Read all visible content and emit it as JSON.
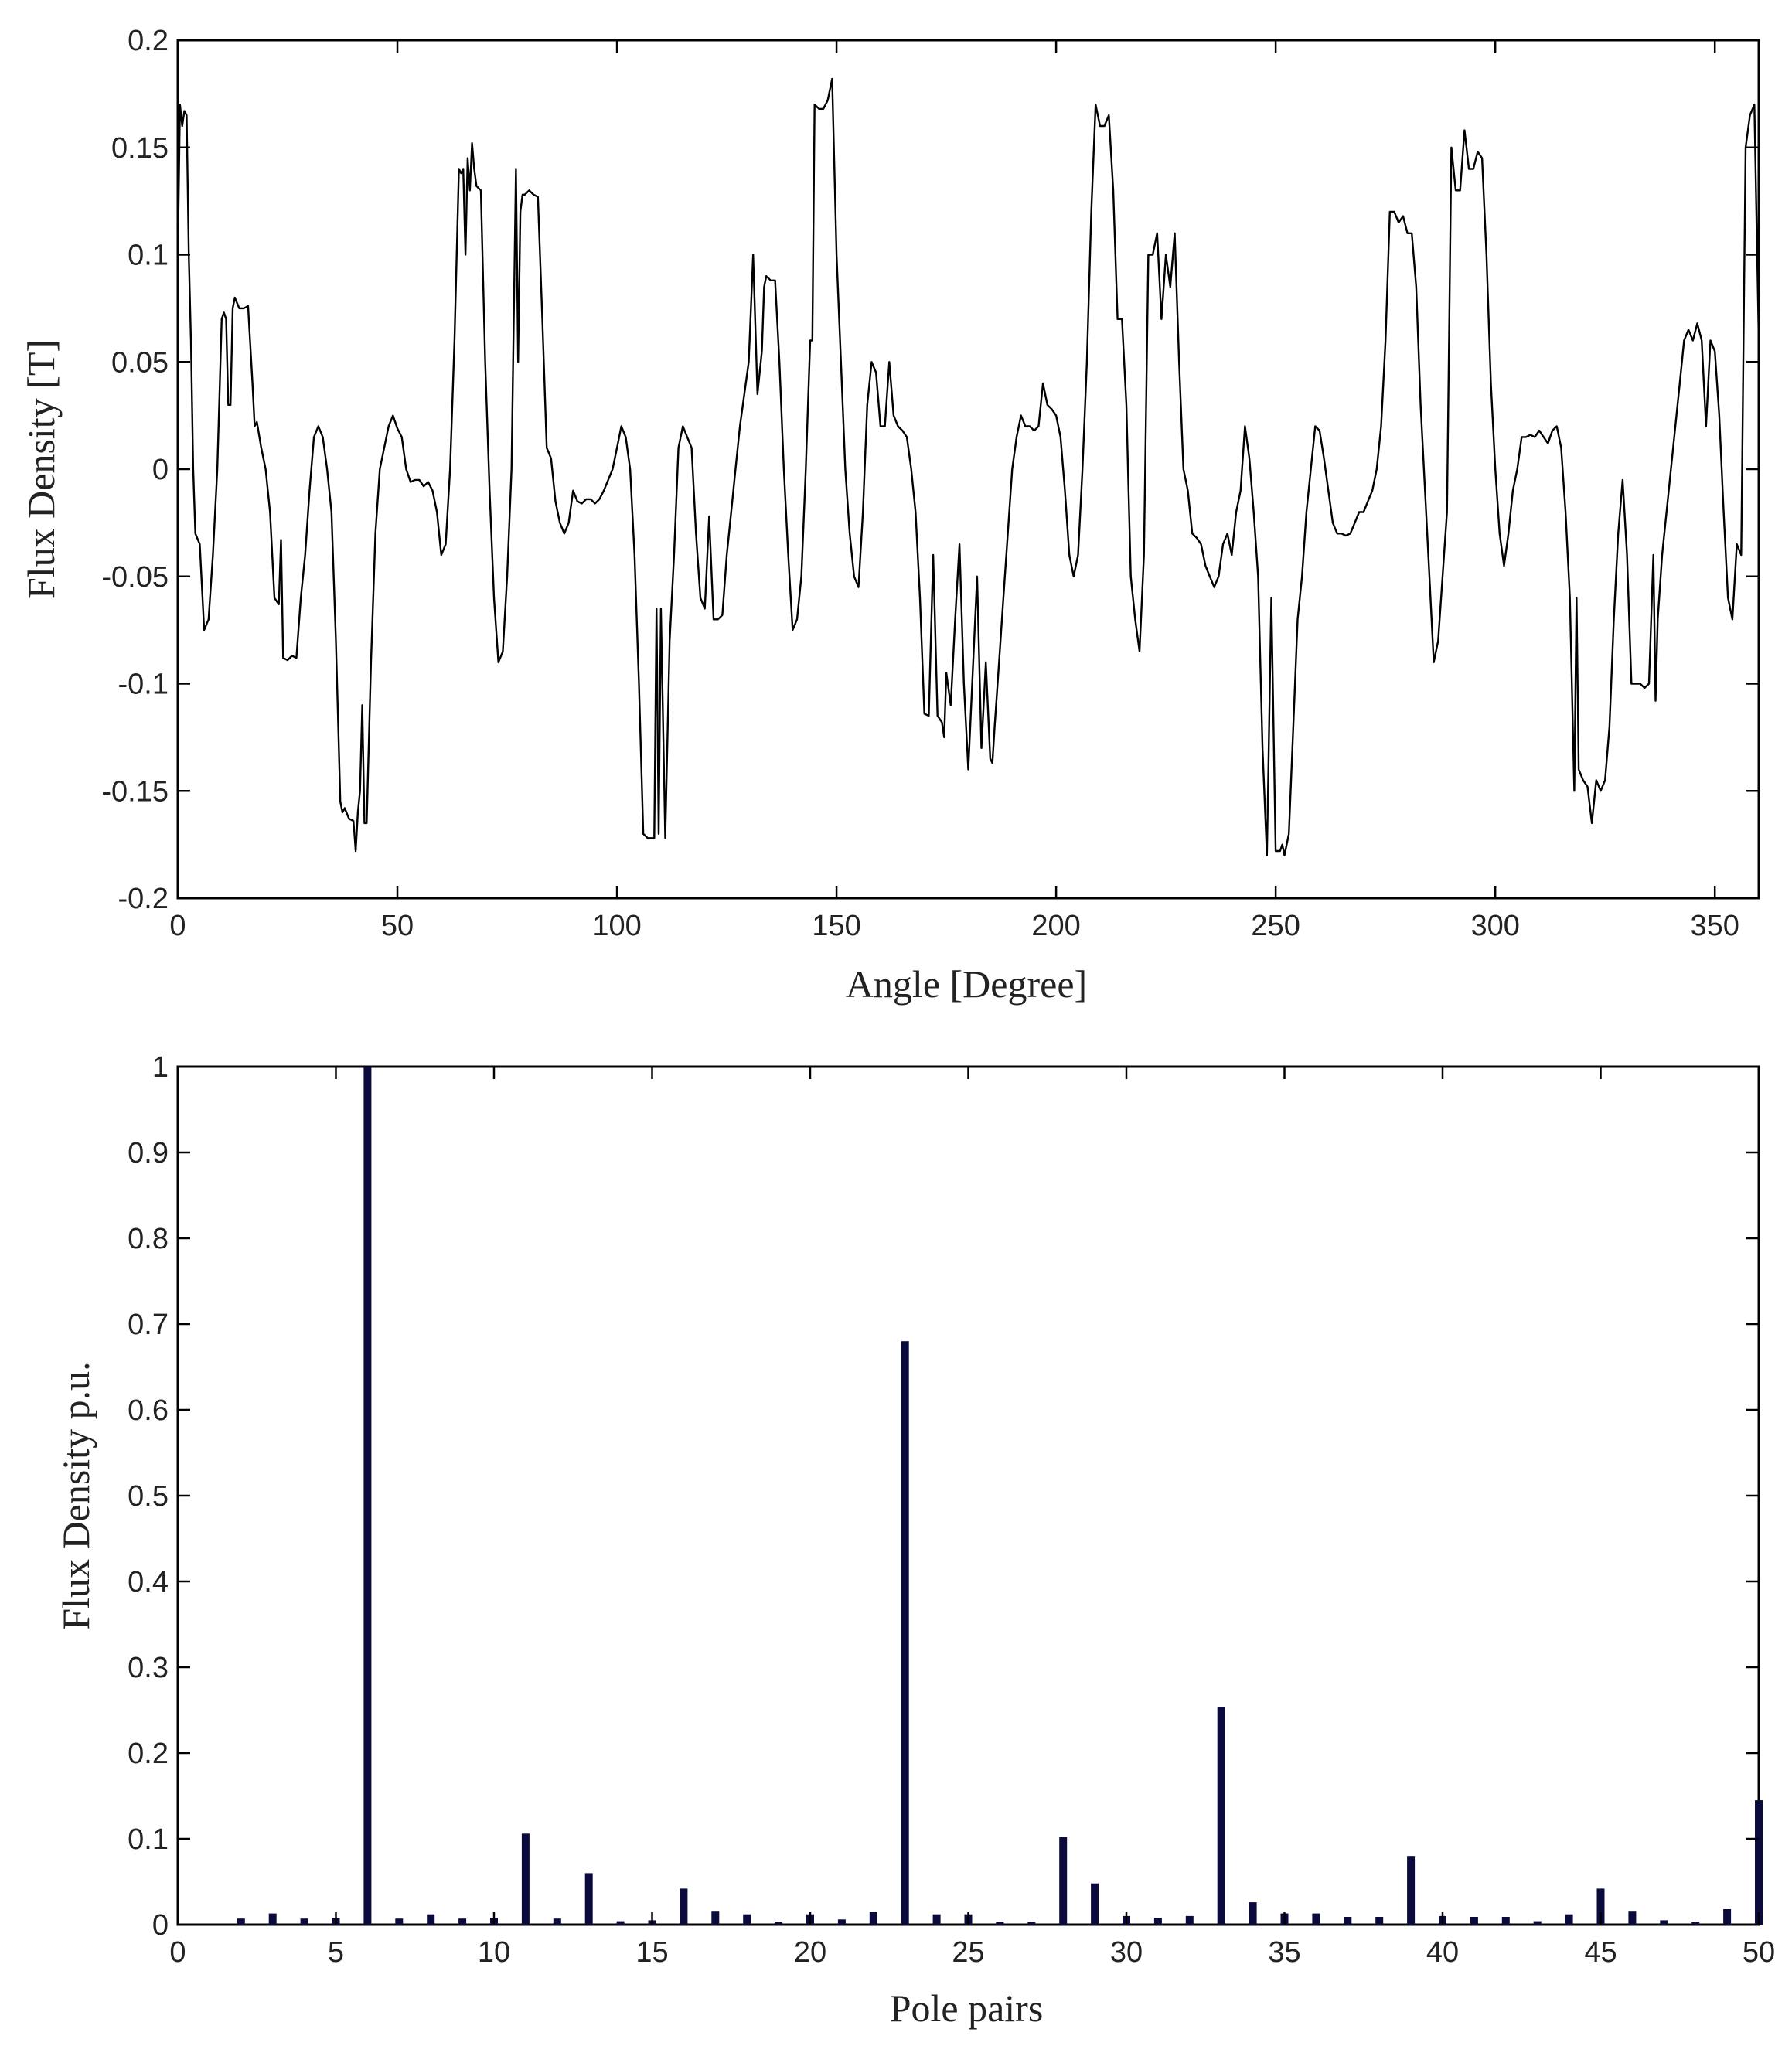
{
  "chart_data": [
    {
      "type": "line",
      "xlabel": "Angle [Degree]",
      "ylabel": "Flux Density [T]",
      "xlim": [
        0,
        360
      ],
      "ylim": [
        -0.2,
        0.2
      ],
      "xticks": [
        0,
        50,
        100,
        150,
        200,
        250,
        300,
        350
      ],
      "xtick_labels": [
        "0",
        "50",
        "100",
        "150",
        "200",
        "250",
        "300",
        "350"
      ],
      "yticks": [
        0.2,
        0.15,
        0.1,
        0.05,
        0,
        -0.05,
        -0.1,
        -0.15,
        -0.2
      ],
      "ytick_labels": [
        "0.2",
        "0.15",
        "0.1",
        "0.05",
        "0",
        "-0.05",
        "-0.1",
        "-0.15",
        "-0.2"
      ],
      "grid": false,
      "line_color": "#000000",
      "series": [
        {
          "x": [
            0,
            0.5,
            1,
            1.5,
            2,
            2.5,
            3,
            3.5,
            4,
            5,
            6,
            7,
            8,
            9,
            10,
            10.5,
            11,
            11.5,
            12,
            12.5,
            13,
            14,
            15,
            16,
            17,
            17.5,
            18,
            19,
            20,
            21,
            22,
            23,
            23.5,
            24,
            25,
            26,
            27,
            28,
            29,
            30,
            31,
            32,
            33,
            34,
            35,
            36,
            37,
            37.5,
            38,
            39,
            40,
            40.5,
            41,
            41.5,
            42,
            42.5,
            43,
            44,
            45,
            46,
            47,
            48,
            49,
            50,
            51,
            52,
            53,
            54,
            55,
            56,
            57,
            58,
            59,
            60,
            61,
            62,
            63,
            64,
            64.5,
            65,
            65.5,
            66,
            66.5,
            67,
            67.5,
            68,
            69,
            70,
            71,
            72,
            73,
            74,
            75,
            76,
            77,
            77.5,
            78,
            78.5,
            79,
            80,
            81,
            82,
            83,
            84,
            85,
            86,
            87,
            88,
            89,
            90,
            91,
            92,
            93,
            94,
            95,
            96,
            97,
            98,
            99,
            100,
            101,
            102,
            103,
            104,
            105,
            106,
            107,
            108,
            108.5,
            109,
            109.5,
            110,
            111,
            112,
            113,
            114,
            115,
            116,
            117,
            118,
            119,
            120,
            121,
            122,
            123,
            124,
            125,
            126,
            127,
            128,
            129,
            130,
            131,
            132,
            133,
            133.5,
            134,
            135,
            136,
            137,
            138,
            139,
            140,
            141,
            142,
            143,
            144,
            144.5,
            145,
            146,
            147,
            148,
            149,
            150,
            151,
            152,
            153,
            154,
            155,
            156,
            157,
            158,
            159,
            160,
            161,
            162,
            163,
            164,
            165,
            166,
            167,
            168,
            169,
            170,
            171,
            172,
            173,
            174,
            174.5,
            175,
            176,
            177,
            178,
            179,
            180,
            181,
            182,
            183,
            184,
            185,
            185.5,
            186,
            187,
            188,
            189,
            190,
            191,
            192,
            193,
            194,
            195,
            196,
            197,
            198,
            199,
            200,
            201,
            202,
            203,
            204,
            205,
            206,
            207,
            208,
            209,
            210,
            211,
            212,
            213,
            214,
            215,
            216,
            216.5,
            217,
            218,
            219,
            220,
            221,
            222,
            223,
            224,
            225,
            226,
            227,
            228,
            229,
            230,
            231,
            232,
            233,
            234,
            235,
            236,
            237,
            238,
            239,
            240,
            241,
            242,
            243,
            244,
            245,
            246,
            247,
            248,
            249,
            250,
            251,
            251.5,
            252,
            253,
            254,
            255,
            256,
            257,
            258,
            259,
            260,
            261,
            262,
            263,
            264,
            265,
            266,
            267,
            268,
            269,
            270,
            271,
            272,
            273,
            274,
            275,
            276,
            277,
            278,
            279,
            280,
            281,
            282,
            283,
            284,
            285,
            286,
            287,
            288,
            289,
            290,
            291,
            292,
            293,
            294,
            295,
            296,
            297,
            298,
            299,
            300,
            301,
            302,
            303,
            304,
            305,
            306,
            307,
            308,
            309,
            310,
            311,
            312,
            313,
            314,
            315,
            316,
            317,
            318,
            318.5,
            319,
            320,
            321,
            322,
            323,
            324,
            325,
            326,
            327,
            328,
            329,
            330,
            331,
            332,
            333,
            334,
            335,
            336,
            336.5,
            337,
            338,
            339,
            340,
            341,
            342,
            343,
            344,
            345,
            346,
            347,
            348,
            349,
            350,
            351,
            352,
            353,
            354,
            355,
            356,
            357,
            358,
            359,
            360
          ],
          "y": [
            0.1,
            0.17,
            0.16,
            0.167,
            0.165,
            0.1,
            0.06,
            0.0,
            -0.03,
            -0.035,
            -0.075,
            -0.07,
            -0.04,
            0.0,
            0.07,
            0.073,
            0.07,
            0.03,
            0.03,
            0.075,
            0.08,
            0.075,
            0.075,
            0.076,
            0.04,
            0.02,
            0.022,
            0.01,
            0.0,
            -0.02,
            -0.06,
            -0.063,
            -0.033,
            -0.088,
            -0.089,
            -0.087,
            -0.088,
            -0.06,
            -0.04,
            -0.01,
            0.015,
            0.02,
            0.015,
            0.0,
            -0.02,
            -0.08,
            -0.155,
            -0.16,
            -0.158,
            -0.163,
            -0.164,
            -0.178,
            -0.16,
            -0.15,
            -0.11,
            -0.165,
            -0.165,
            -0.09,
            -0.03,
            0.0,
            0.01,
            0.02,
            0.025,
            0.019,
            0.015,
            -0.0,
            -0.006,
            -0.005,
            -0.005,
            -0.008,
            -0.006,
            -0.01,
            -0.02,
            -0.04,
            -0.035,
            0.0,
            0.06,
            0.14,
            0.138,
            0.14,
            0.1,
            0.145,
            0.13,
            0.152,
            0.14,
            0.132,
            0.13,
            0.05,
            -0.01,
            -0.06,
            -0.09,
            -0.085,
            -0.05,
            0.0,
            0.14,
            0.05,
            0.12,
            0.128,
            0.128,
            0.13,
            0.128,
            0.127,
            0.07,
            0.01,
            0.005,
            -0.015,
            -0.025,
            -0.03,
            -0.025,
            -0.01,
            -0.015,
            -0.016,
            -0.014,
            -0.014,
            -0.016,
            -0.014,
            -0.01,
            -0.005,
            0.0,
            0.01,
            0.02,
            0.015,
            0.0,
            -0.04,
            -0.1,
            -0.17,
            -0.172,
            -0.172,
            -0.172,
            -0.065,
            -0.17,
            -0.065,
            -0.172,
            -0.08,
            -0.04,
            0.01,
            0.02,
            0.015,
            0.01,
            -0.03,
            -0.06,
            -0.065,
            -0.022,
            -0.07,
            -0.07,
            -0.068,
            -0.04,
            -0.02,
            0.0,
            0.02,
            0.035,
            0.05,
            0.1,
            0.035,
            0.055,
            0.085,
            0.09,
            0.088,
            0.088,
            0.05,
            0.0,
            -0.04,
            -0.075,
            -0.07,
            -0.05,
            0.0,
            0.06,
            0.06,
            0.17,
            0.168,
            0.168,
            0.172,
            0.182,
            0.1,
            0.05,
            0.0,
            -0.03,
            -0.05,
            -0.055,
            -0.02,
            0.03,
            0.05,
            0.045,
            0.02,
            0.02,
            0.05,
            0.025,
            0.02,
            0.018,
            0.015,
            0.0,
            -0.02,
            -0.06,
            -0.114,
            -0.115,
            -0.04,
            -0.115,
            -0.118,
            -0.125,
            -0.095,
            -0.11,
            -0.07,
            -0.035,
            -0.1,
            -0.14,
            -0.095,
            -0.05,
            -0.13,
            -0.09,
            -0.135,
            -0.137,
            -0.12,
            -0.09,
            -0.06,
            -0.03,
            0.0,
            0.015,
            0.025,
            0.02,
            0.02,
            0.018,
            0.02,
            0.04,
            0.03,
            0.028,
            0.025,
            0.015,
            -0.01,
            -0.04,
            -0.05,
            -0.04,
            0.0,
            0.05,
            0.12,
            0.17,
            0.16,
            0.16,
            0.165,
            0.13,
            0.07,
            0.07,
            0.03,
            -0.01,
            -0.05,
            -0.07,
            -0.085,
            -0.04,
            0.1,
            0.1,
            0.11,
            0.07,
            0.1,
            0.085,
            0.11,
            0.05,
            0.0,
            -0.01,
            -0.03,
            -0.032,
            -0.035,
            -0.045,
            -0.05,
            -0.055,
            -0.05,
            -0.035,
            -0.03,
            -0.04,
            -0.02,
            -0.01,
            0.02,
            0.005,
            -0.02,
            -0.05,
            -0.13,
            -0.18,
            -0.06,
            -0.178,
            -0.178,
            -0.175,
            -0.18,
            -0.17,
            -0.12,
            -0.07,
            -0.05,
            -0.02,
            0.0,
            0.02,
            0.018,
            0.005,
            -0.01,
            -0.025,
            -0.03,
            -0.03,
            -0.031,
            -0.03,
            -0.025,
            -0.02,
            -0.02,
            -0.015,
            -0.01,
            0.0,
            0.02,
            0.06,
            0.12,
            0.12,
            0.115,
            0.118,
            0.11,
            0.11,
            0.085,
            0.03,
            -0.01,
            -0.05,
            -0.09,
            -0.08,
            -0.05,
            -0.02,
            0.15,
            0.13,
            0.13,
            0.158,
            0.14,
            0.14,
            0.148,
            0.145,
            0.1,
            0.04,
            -0.0,
            -0.03,
            -0.045,
            -0.03,
            -0.01,
            0.0,
            0.015,
            0.015,
            0.016,
            0.015,
            0.018,
            0.015,
            0.012,
            0.018,
            0.02,
            0.01,
            -0.02,
            -0.06,
            -0.15,
            -0.06,
            -0.14,
            -0.145,
            -0.148,
            -0.165,
            -0.145,
            -0.15,
            -0.145,
            -0.12,
            -0.07,
            -0.03,
            -0.005,
            -0.04,
            -0.1,
            -0.1,
            -0.1,
            -0.102,
            -0.1,
            -0.04,
            -0.108,
            -0.07,
            -0.04,
            -0.02,
            0.0,
            0.02,
            0.04,
            0.06,
            0.065,
            0.06,
            0.068,
            0.06,
            0.02,
            0.06,
            0.055,
            0.025,
            -0.02,
            -0.06,
            -0.07,
            -0.035,
            -0.04,
            0.15,
            0.165,
            0.17,
            0.06
          ]
        }
      ]
    },
    {
      "type": "bar",
      "xlabel": "Pole pairs",
      "ylabel": "Flux Density p.u.",
      "xlim": [
        0,
        50
      ],
      "ylim": [
        0,
        1
      ],
      "xticks": [
        0,
        5,
        10,
        15,
        20,
        25,
        30,
        35,
        40,
        45,
        50
      ],
      "xtick_labels": [
        "0",
        "5",
        "10",
        "15",
        "20",
        "25",
        "30",
        "35",
        "40",
        "45",
        "50"
      ],
      "yticks": [
        0,
        0.1,
        0.2,
        0.3,
        0.4,
        0.5,
        0.6,
        0.7,
        0.8,
        0.9,
        1
      ],
      "ytick_labels": [
        "0",
        "0.1",
        "0.2",
        "0.3",
        "0.4",
        "0.5",
        "0.6",
        "0.7",
        "0.8",
        "0.9",
        "1"
      ],
      "grid": false,
      "bar_color": "#0a0a3c",
      "categories": [
        1,
        2,
        3,
        4,
        5,
        6,
        7,
        8,
        9,
        10,
        11,
        12,
        13,
        14,
        15,
        16,
        17,
        18,
        19,
        20,
        21,
        22,
        23,
        24,
        25,
        26,
        27,
        28,
        29,
        30,
        31,
        32,
        33,
        34,
        35,
        36,
        37,
        38,
        39,
        40,
        41,
        42,
        43,
        44,
        45,
        46,
        47,
        48,
        49,
        50
      ],
      "values": [
        0.0,
        0.007,
        0.013,
        0.007,
        0.008,
        1.0,
        0.007,
        0.012,
        0.007,
        0.008,
        0.106,
        0.007,
        0.06,
        0.004,
        0.005,
        0.042,
        0.016,
        0.012,
        0.003,
        0.012,
        0.006,
        0.015,
        0.68,
        0.012,
        0.012,
        0.003,
        0.003,
        0.102,
        0.048,
        0.01,
        0.008,
        0.01,
        0.254,
        0.026,
        0.013,
        0.013,
        0.009,
        0.009,
        0.08,
        0.01,
        0.009,
        0.009,
        0.004,
        0.012,
        0.042,
        0.016,
        0.005,
        0.003,
        0.018,
        0.145
      ]
    }
  ]
}
